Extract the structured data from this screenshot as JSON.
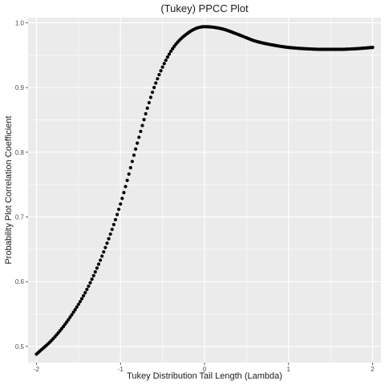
{
  "chart_data": {
    "type": "scatter",
    "title": "(Tukey) PPCC Plot",
    "xlabel": "Tukey Distribution Tail Length (Lambda)",
    "ylabel": "Probability Plot Correlation Coefficient",
    "xlim": [
      -2.1,
      2.1
    ],
    "ylim": [
      0.475,
      1.008
    ],
    "grid": true,
    "x_ticks": [
      {
        "value": -2,
        "label": "-2"
      },
      {
        "value": -1,
        "label": "-1"
      },
      {
        "value": 0,
        "label": "0"
      },
      {
        "value": 1,
        "label": "1"
      },
      {
        "value": 2,
        "label": "2"
      }
    ],
    "y_ticks": [
      {
        "value": 0.5,
        "label": "0.5"
      },
      {
        "value": 0.6,
        "label": "0.6"
      },
      {
        "value": 0.7,
        "label": "0.7"
      },
      {
        "value": 0.8,
        "label": "0.8"
      },
      {
        "value": 0.9,
        "label": "0.9"
      },
      {
        "value": 1.0,
        "label": "1.0"
      }
    ],
    "point_color": "#000000",
    "panel_color": "#EBEBEB",
    "grid_color": "#FFFFFF",
    "curve_keypoints": {
      "x": [
        -2.0,
        -1.8,
        -1.6,
        -1.4,
        -1.2,
        -1.0,
        -0.8,
        -0.6,
        -0.4,
        -0.2,
        0.0,
        0.2,
        0.4,
        0.6,
        0.8,
        1.0,
        1.2,
        1.4,
        1.6,
        1.8,
        2.0
      ],
      "y": [
        0.488,
        0.512,
        0.545,
        0.588,
        0.646,
        0.72,
        0.814,
        0.9,
        0.956,
        0.984,
        0.994,
        0.991,
        0.982,
        0.972,
        0.966,
        0.962,
        0.96,
        0.959,
        0.959,
        0.96,
        0.962
      ]
    },
    "n_points": 201
  }
}
